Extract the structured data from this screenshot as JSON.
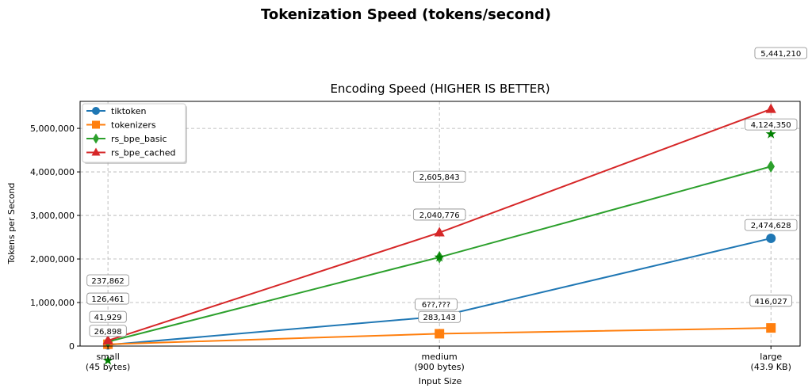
{
  "figure_title": "Tokenization Speed (tokens/second)",
  "chart_data": {
    "type": "line",
    "title": "Encoding Speed (HIGHER IS BETTER)",
    "xlabel": "Input Size",
    "ylabel": "Tokens per Second",
    "categories": [
      "small\n(45 bytes)",
      "medium\n(900 bytes)",
      "large\n(43.9 KB)"
    ],
    "ylim": [
      0,
      5620000
    ],
    "yticks": [
      0,
      1000000,
      2000000,
      3000000,
      4000000,
      5000000
    ],
    "ytick_labels": [
      "0",
      "1,000,000",
      "2,000,000",
      "3,000,000",
      "4,000,000",
      "5,000,000"
    ],
    "grid": true,
    "legend_position": "upper-left",
    "series": [
      {
        "name": "tiktoken",
        "color": "#1f77b4",
        "marker": "circle",
        "values": [
          26898,
          680000,
          2474628
        ]
      },
      {
        "name": "tokenizers",
        "color": "#ff7f0e",
        "marker": "square",
        "values": [
          41929,
          283143,
          416027
        ]
      },
      {
        "name": "rs_bpe_basic",
        "color": "#2ca02c",
        "marker": "diamond",
        "values": [
          100000,
          2040776,
          4124350
        ]
      },
      {
        "name": "rs_bpe_cached",
        "color": "#d62728",
        "marker": "triangle",
        "values": [
          126461,
          2605843,
          5441210
        ]
      }
    ],
    "extra_markers": {
      "color": "#008000",
      "marker": "star",
      "values": [
        -330000,
        2040000,
        4870000
      ]
    },
    "annotations": [
      {
        "text": "237,862",
        "x": 0,
        "y": 1510000
      },
      {
        "text": "126,461",
        "x": 0,
        "y": 1090000
      },
      {
        "text": "41,929",
        "x": 0,
        "y": 670000
      },
      {
        "text": "26,898",
        "x": 0,
        "y": 350000
      },
      {
        "text": "6??,???",
        "x": 0.99,
        "y": 960000
      },
      {
        "text": "2,605,843",
        "x": 1,
        "y": 3890000
      },
      {
        "text": "2,040,776",
        "x": 1,
        "y": 3020000
      },
      {
        "text": "283,143",
        "x": 1,
        "y": 910000
      },
      {
        "text": "5,441,210",
        "x": 2.03,
        "y": 6730000
      },
      {
        "text": "4,124,350",
        "x": 2,
        "y": 5090000
      },
      {
        "text": "2,474,628",
        "x": 2,
        "y": 2780000
      },
      {
        "text": "416,027",
        "x": 2,
        "y": 1040000
      }
    ]
  }
}
